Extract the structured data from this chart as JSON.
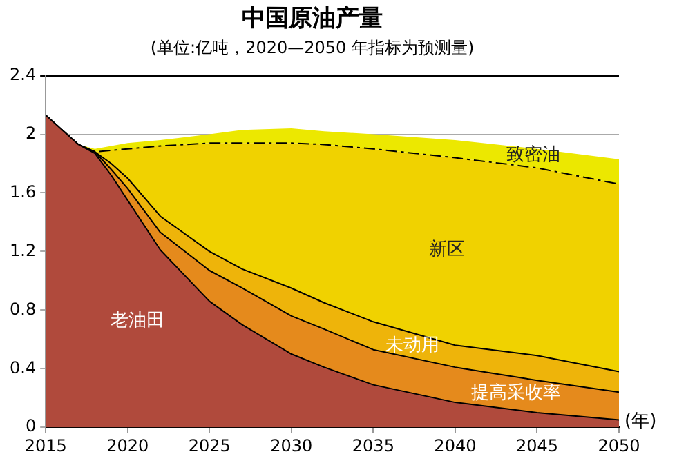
{
  "chart_data": {
    "type": "area",
    "stacked": true,
    "title": "中国原油产量",
    "subtitle": "(单位:亿吨，2020—2050 年指标为预测量)",
    "xlabel": "(年)",
    "x": [
      2015,
      2017,
      2018,
      2019,
      2020,
      2022,
      2025,
      2027,
      2030,
      2032,
      2035,
      2040,
      2045,
      2050
    ],
    "series": [
      {
        "name": "老油田",
        "color": "#b04a3c",
        "line_style": "solid",
        "values": [
          2.13,
          1.93,
          1.87,
          1.72,
          1.55,
          1.21,
          0.86,
          0.7,
          0.5,
          0.41,
          0.29,
          0.17,
          0.1,
          0.05
        ]
      },
      {
        "name": "提高采收率",
        "color": "#e58a1c",
        "line_style": "solid",
        "values": [
          0,
          0,
          0.01,
          0.04,
          0.08,
          0.12,
          0.21,
          0.25,
          0.26,
          0.26,
          0.24,
          0.24,
          0.22,
          0.19
        ]
      },
      {
        "name": "未动用",
        "color": "#eeb40a",
        "line_style": "solid",
        "values": [
          0,
          0,
          0,
          0.04,
          0.07,
          0.11,
          0.13,
          0.13,
          0.19,
          0.18,
          0.19,
          0.15,
          0.17,
          0.14
        ]
      },
      {
        "name": "新区",
        "color": "#f0d200",
        "line_style": "dashed",
        "values": [
          0,
          0,
          0,
          0.09,
          0.2,
          0.48,
          0.74,
          0.86,
          0.99,
          1.08,
          1.18,
          1.28,
          1.28,
          1.28
        ]
      },
      {
        "name": "致密油",
        "color": "#ece800",
        "values": [
          0,
          0,
          0.02,
          0.03,
          0.04,
          0.04,
          0.06,
          0.09,
          0.1,
          0.09,
          0.1,
          0.12,
          0.13,
          0.17
        ]
      }
    ],
    "xlim": [
      2015,
      2050
    ],
    "xticks": [
      2015,
      2020,
      2025,
      2030,
      2035,
      2040,
      2045,
      2050
    ],
    "ylim": [
      0,
      2.4
    ],
    "yticks": [
      0,
      0.4,
      0.8,
      1.2,
      1.6,
      2,
      2.4
    ],
    "grid": "y",
    "legend": false
  }
}
